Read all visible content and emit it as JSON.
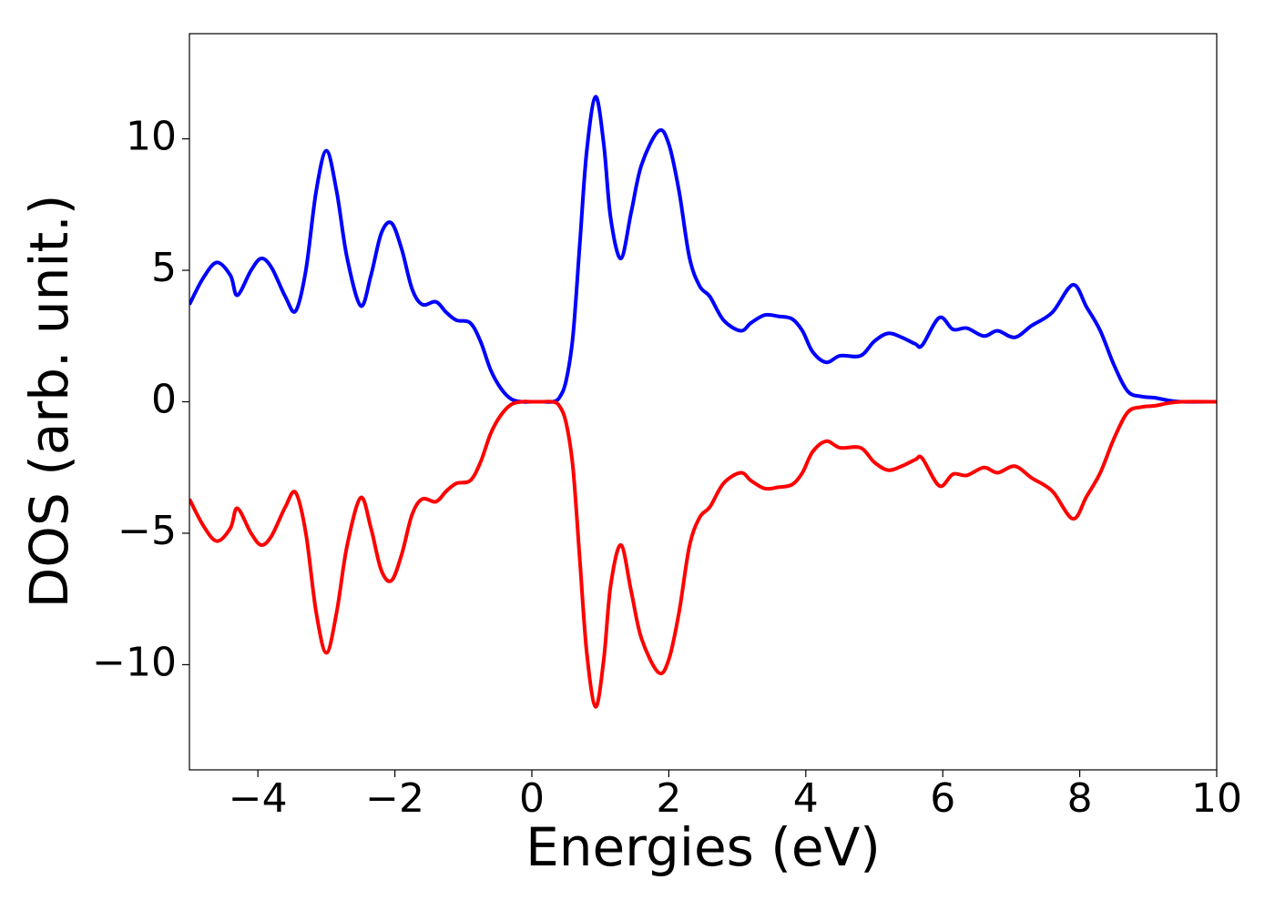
{
  "chart_data": {
    "type": "line",
    "xlabel": "Energies (eV)",
    "ylabel": "DOS (arb. unit.)",
    "xlim": [
      -5,
      10
    ],
    "ylim": [
      -14,
      14
    ],
    "xticks": [
      {
        "value": -4,
        "label": "−4"
      },
      {
        "value": -2,
        "label": "−2"
      },
      0,
      2,
      4,
      6,
      8,
      10
    ],
    "yticks": [
      {
        "value": -10,
        "label": "−10"
      },
      {
        "value": -5,
        "label": "−5"
      },
      0,
      5,
      10
    ],
    "x": [
      -5,
      -4.8,
      -4.6,
      -4.4,
      -4.3,
      -4.1,
      -3.95,
      -3.8,
      -3.6,
      -3.45,
      -3.3,
      -3.15,
      -3.0,
      -2.85,
      -2.7,
      -2.5,
      -2.35,
      -2.2,
      -2.05,
      -1.9,
      -1.75,
      -1.6,
      -1.4,
      -1.25,
      -1.1,
      -0.9,
      -0.75,
      -0.6,
      -0.45,
      -0.3,
      -0.15,
      0,
      0.15,
      0.3,
      0.4,
      0.5,
      0.6,
      0.7,
      0.8,
      0.93,
      1.05,
      1.15,
      1.3,
      1.45,
      1.6,
      1.85,
      2.0,
      2.15,
      2.3,
      2.45,
      2.6,
      2.8,
      3.05,
      3.2,
      3.4,
      3.6,
      3.8,
      3.95,
      4.1,
      4.3,
      4.5,
      4.8,
      5.0,
      5.2,
      5.4,
      5.6,
      5.7,
      5.95,
      6.15,
      6.35,
      6.6,
      6.8,
      7.05,
      7.3,
      7.6,
      7.9,
      8.1,
      8.3,
      8.5,
      8.7,
      8.9,
      9.1,
      9.3,
      9.5,
      10
    ],
    "series": [
      {
        "color": "#0000ff",
        "values": [
          3.7,
          4.7,
          5.3,
          4.8,
          4.05,
          5.0,
          5.45,
          5.1,
          4.0,
          3.45,
          5.0,
          8.0,
          9.55,
          8.0,
          5.5,
          3.65,
          4.8,
          6.4,
          6.8,
          5.8,
          4.3,
          3.7,
          3.8,
          3.4,
          3.1,
          3.0,
          2.3,
          1.2,
          0.5,
          0.1,
          0.0,
          0,
          0,
          0,
          0.15,
          0.8,
          2.5,
          6.0,
          9.5,
          11.6,
          9.8,
          7.0,
          5.45,
          7.2,
          9.0,
          10.3,
          9.8,
          8.0,
          5.5,
          4.4,
          4.0,
          3.1,
          2.7,
          3.0,
          3.3,
          3.25,
          3.15,
          2.7,
          1.9,
          1.5,
          1.75,
          1.75,
          2.3,
          2.6,
          2.45,
          2.2,
          2.15,
          3.2,
          2.75,
          2.8,
          2.5,
          2.7,
          2.45,
          2.9,
          3.4,
          4.45,
          3.6,
          2.7,
          1.4,
          0.4,
          0.2,
          0.15,
          0.05,
          0,
          0
        ]
      },
      {
        "color": "#ff0000",
        "values": [
          -3.7,
          -4.7,
          -5.3,
          -4.8,
          -4.05,
          -5.0,
          -5.45,
          -5.1,
          -4.0,
          -3.45,
          -5.0,
          -8.0,
          -9.55,
          -8.0,
          -5.5,
          -3.65,
          -4.8,
          -6.4,
          -6.8,
          -5.8,
          -4.3,
          -3.7,
          -3.8,
          -3.4,
          -3.1,
          -3.0,
          -2.3,
          -1.2,
          -0.5,
          -0.1,
          0.0,
          0,
          0,
          0,
          -0.15,
          -0.8,
          -2.5,
          -6.0,
          -9.5,
          -11.6,
          -9.8,
          -7.0,
          -5.45,
          -7.2,
          -9.0,
          -10.3,
          -9.8,
          -8.0,
          -5.5,
          -4.4,
          -4.0,
          -3.1,
          -2.7,
          -3.0,
          -3.3,
          -3.25,
          -3.15,
          -2.7,
          -1.9,
          -1.5,
          -1.75,
          -1.75,
          -2.3,
          -2.6,
          -2.45,
          -2.2,
          -2.15,
          -3.2,
          -2.75,
          -2.8,
          -2.5,
          -2.7,
          -2.45,
          -2.9,
          -3.4,
          -4.45,
          -3.6,
          -2.7,
          -1.4,
          -0.4,
          -0.2,
          -0.15,
          -0.05,
          0,
          0
        ]
      }
    ]
  }
}
